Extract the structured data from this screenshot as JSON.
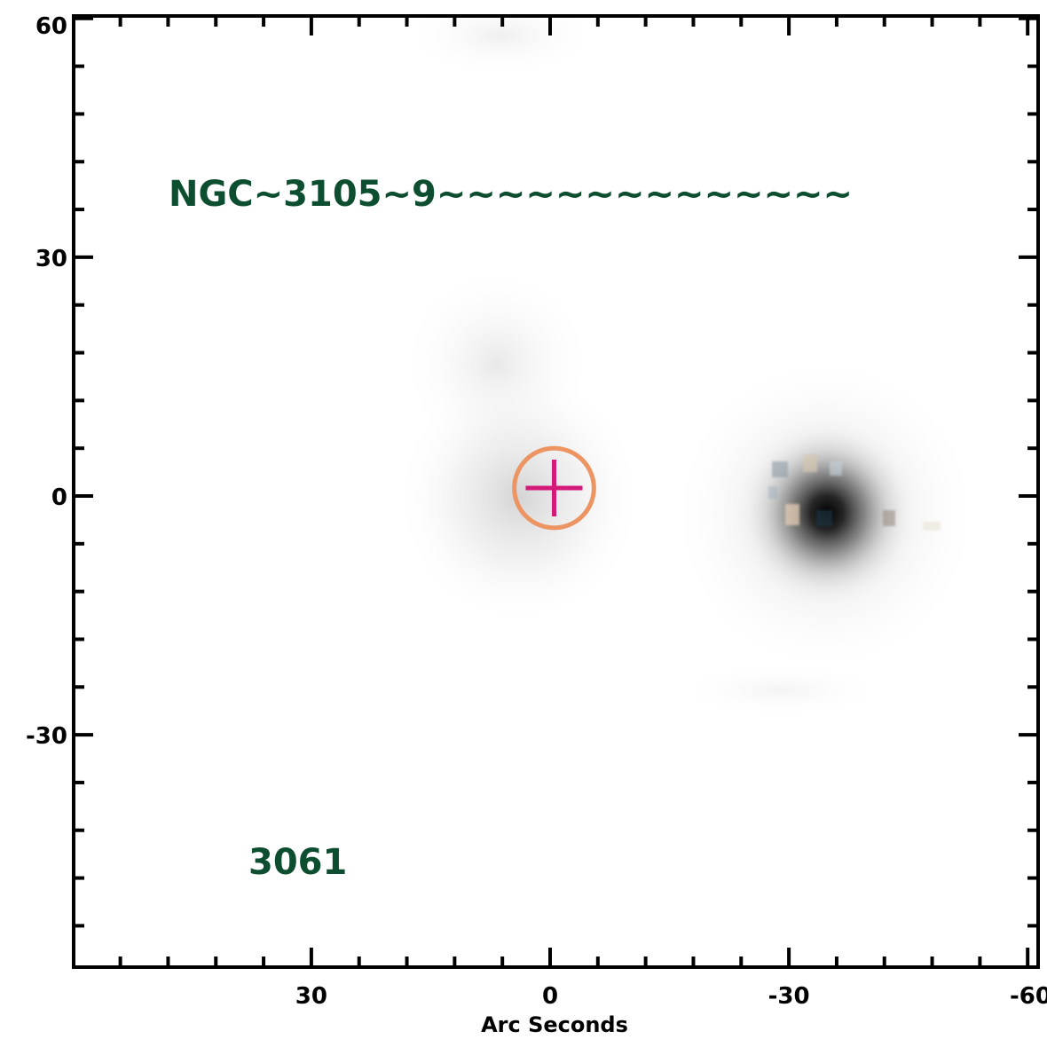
{
  "image": {
    "subject": "",
    "x_axis": {
      "title": "Arc Seconds",
      "range": [
        60,
        -60
      ],
      "major_ticks": [
        30,
        0,
        -30,
        -60
      ],
      "major_tick_labels": [
        "30",
        "0",
        "-30",
        "-60"
      ],
      "minor_step": 6
    },
    "y_axis": {
      "title": "",
      "range": [
        -60,
        60
      ],
      "major_ticks": [
        60,
        30,
        0,
        -30
      ],
      "major_tick_labels": [
        "60",
        "30",
        "0",
        "-30"
      ],
      "minor_step": 6
    },
    "annotations": {
      "object_label": "NGC~3105~9~~~~~~~~~~~~~~",
      "id_label": "3061",
      "label_color": "#0d4d30"
    },
    "markers": {
      "cross": {
        "x": -0.5,
        "y": 1,
        "color": "#d31a78"
      },
      "circle": {
        "x": -0.5,
        "y": 1,
        "radius_arcsec": 5,
        "color": "#ec9462"
      }
    },
    "sources": [
      {
        "name": "faint-blob-center",
        "x": 5,
        "y": 4,
        "level": 0.18
      },
      {
        "name": "faint-blob-upper",
        "x": 6,
        "y": 17,
        "level": 0.1
      },
      {
        "name": "bright-galaxy",
        "x": -35,
        "y": -1,
        "level": 0.95
      }
    ]
  }
}
